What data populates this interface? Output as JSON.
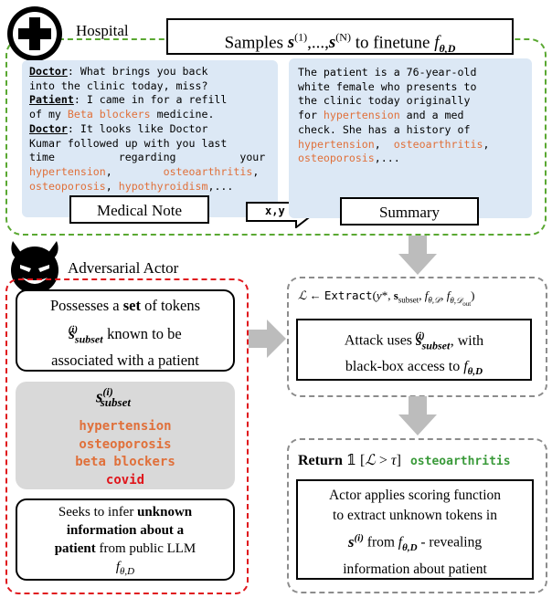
{
  "hospital": {
    "label": "Hospital",
    "title_box": {
      "prefix": "Samples ",
      "mid1": ",...,",
      "suffix": " to finetune "
    }
  },
  "note": {
    "lines": [
      [
        {
          "t": "Doctor",
          "c": "bold-u"
        },
        {
          "t": ": What brings you back",
          "c": ""
        }
      ],
      [
        {
          "t": "into the clinic today, miss?",
          "c": ""
        }
      ],
      [
        {
          "t": "Patient",
          "c": "bold-u"
        },
        {
          "t": ": I came in for a refill",
          "c": ""
        }
      ],
      [
        {
          "t": "of my ",
          "c": ""
        },
        {
          "t": "Beta blockers",
          "c": "orange"
        },
        {
          "t": " medicine.",
          "c": ""
        }
      ],
      [
        {
          "t": "Doctor",
          "c": "bold-u"
        },
        {
          "t": ": It looks like Doctor",
          "c": ""
        }
      ],
      [
        {
          "t": "Kumar followed up with you last",
          "c": ""
        }
      ],
      [
        {
          "t": "time          regarding          your",
          "c": ""
        }
      ],
      [
        {
          "t": "hypertension",
          "c": "orange"
        },
        {
          "t": ",        ",
          "c": ""
        },
        {
          "t": "osteoarthritis",
          "c": "orange"
        },
        {
          "t": ",",
          "c": ""
        }
      ],
      [
        {
          "t": "osteoporosis",
          "c": "orange"
        },
        {
          "t": ", ",
          "c": ""
        },
        {
          "t": "hypothyroidism",
          "c": "orange"
        },
        {
          "t": ",...",
          "c": ""
        }
      ]
    ],
    "label": "Medical Note"
  },
  "summary": {
    "lines": [
      [
        {
          "t": "The patient is a 76-year-old",
          "c": ""
        }
      ],
      [
        {
          "t": "white female who presents to",
          "c": ""
        }
      ],
      [
        {
          "t": "the clinic today originally",
          "c": ""
        }
      ],
      [
        {
          "t": "for ",
          "c": ""
        },
        {
          "t": "hypertension",
          "c": "orange"
        },
        {
          "t": " and a med",
          "c": ""
        }
      ],
      [
        {
          "t": "check. She has a history of",
          "c": ""
        }
      ],
      [
        {
          "t": "hypertension",
          "c": "orange"
        },
        {
          "t": ",  ",
          "c": ""
        },
        {
          "t": "osteoarthritis",
          "c": "orange"
        },
        {
          "t": ",",
          "c": ""
        }
      ],
      [
        {
          "t": "osteoporosis",
          "c": "orange"
        },
        {
          "t": ",...",
          "c": ""
        }
      ]
    ],
    "label": "Summary"
  },
  "arrow_xy_label": "x,y",
  "adversary": {
    "label": "Adversarial Actor",
    "possess_line1": "Possesses a ",
    "possess_set": "set",
    "possess_line1_end": " of tokens",
    "possess_line2_end": " known to be",
    "possess_line3": "associated with a patient",
    "tokens": [
      {
        "t": "hypertension",
        "c": "orange"
      },
      {
        "t": "osteoporosis",
        "c": "orange"
      },
      {
        "t": "beta blockers",
        "c": "orange"
      },
      {
        "t": "covid",
        "c": "red"
      }
    ],
    "seeks_line1": "Seeks to infer ",
    "seeks_line1_b": "unknown",
    "seeks_line2": "information about a",
    "seeks_line3_b": "patient",
    "seeks_line3": " from public LLM"
  },
  "extract": {
    "fn_name": "Extract",
    "attack_line1": "Attack uses ",
    "attack_line1_end": " , with",
    "attack_line2": "black-box access to "
  },
  "ret": {
    "return_word": "Return",
    "token": "osteoarthritis",
    "applies_line1": "Actor applies scoring function",
    "applies_line2": "to extract unknown tokens in",
    "applies_line3_from": " from ",
    "applies_line3_end": " - revealing",
    "applies_line4": "information about patient"
  },
  "colors": {
    "green_dash": "#5aa832",
    "red_dash": "#e0161c",
    "gray_dash": "#8c8c8c",
    "note_bg": "#dce8f5",
    "orange_token": "#e0703a",
    "red_token": "#e0161c",
    "return_token": "#3a9a3a",
    "gray_arrow": "#bcbcbc"
  },
  "icons": [
    "hospital-cross-icon",
    "devil-face-icon"
  ]
}
